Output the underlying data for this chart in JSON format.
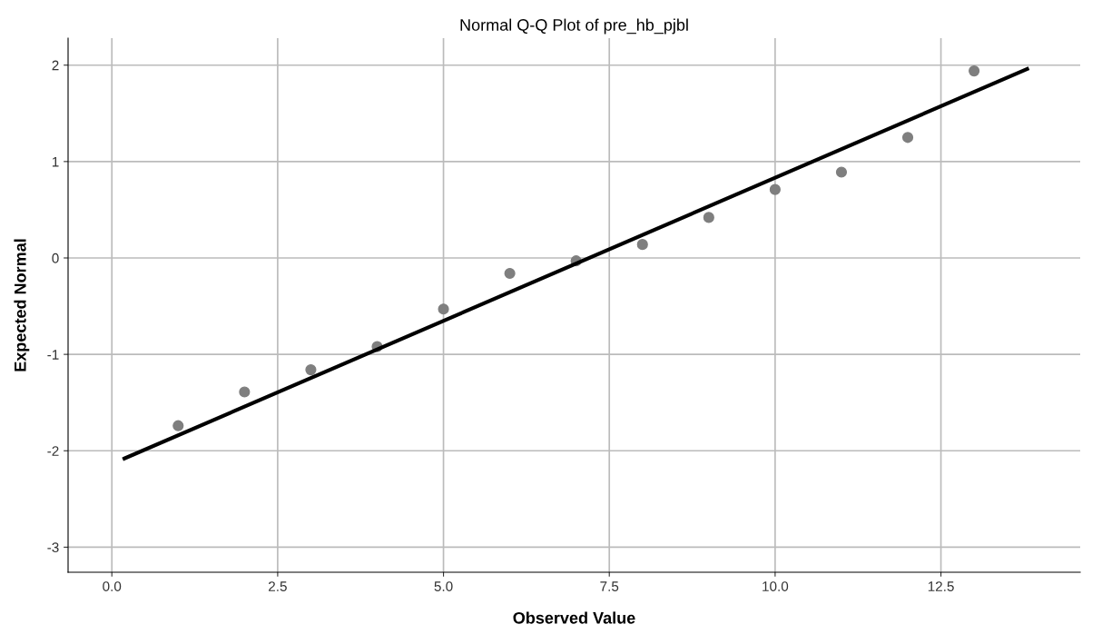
{
  "chart_data": {
    "type": "scatter",
    "title": "Normal Q-Q Plot of pre_hb_pjbl",
    "xlabel": "Observed Value",
    "ylabel": "Expected Normal",
    "series": [
      {
        "color": "#7f7f7f",
        "marker": "circle",
        "x": [
          1,
          2,
          3,
          4,
          5,
          6,
          7,
          8,
          9,
          10,
          11,
          12,
          13
        ],
        "values": [
          -1.74,
          -1.39,
          -1.16,
          -0.92,
          -0.53,
          -0.16,
          -0.03,
          0.14,
          0.42,
          0.71,
          0.89,
          1.25,
          1.94
        ]
      },
      {
        "type": "line",
        "color": "#000000",
        "marker": "none",
        "x": [
          0.19,
          13.8
        ],
        "values": [
          -2.08,
          1.96
        ]
      }
    ],
    "xlim": [
      -0.66,
      14.6
    ],
    "ylim": [
      -3.26,
      2.28
    ],
    "xticks": [
      {
        "value": 0,
        "label": "0.0"
      },
      {
        "value": 2.5,
        "label": "2.5"
      },
      {
        "value": 5,
        "label": "5.0"
      },
      {
        "value": 7.5,
        "label": "7.5"
      },
      {
        "value": 10,
        "label": "10.0"
      },
      {
        "value": 12.5,
        "label": "12.5"
      }
    ],
    "yticks": [
      -3,
      -2,
      -1,
      0,
      1,
      2
    ],
    "grid": true
  }
}
